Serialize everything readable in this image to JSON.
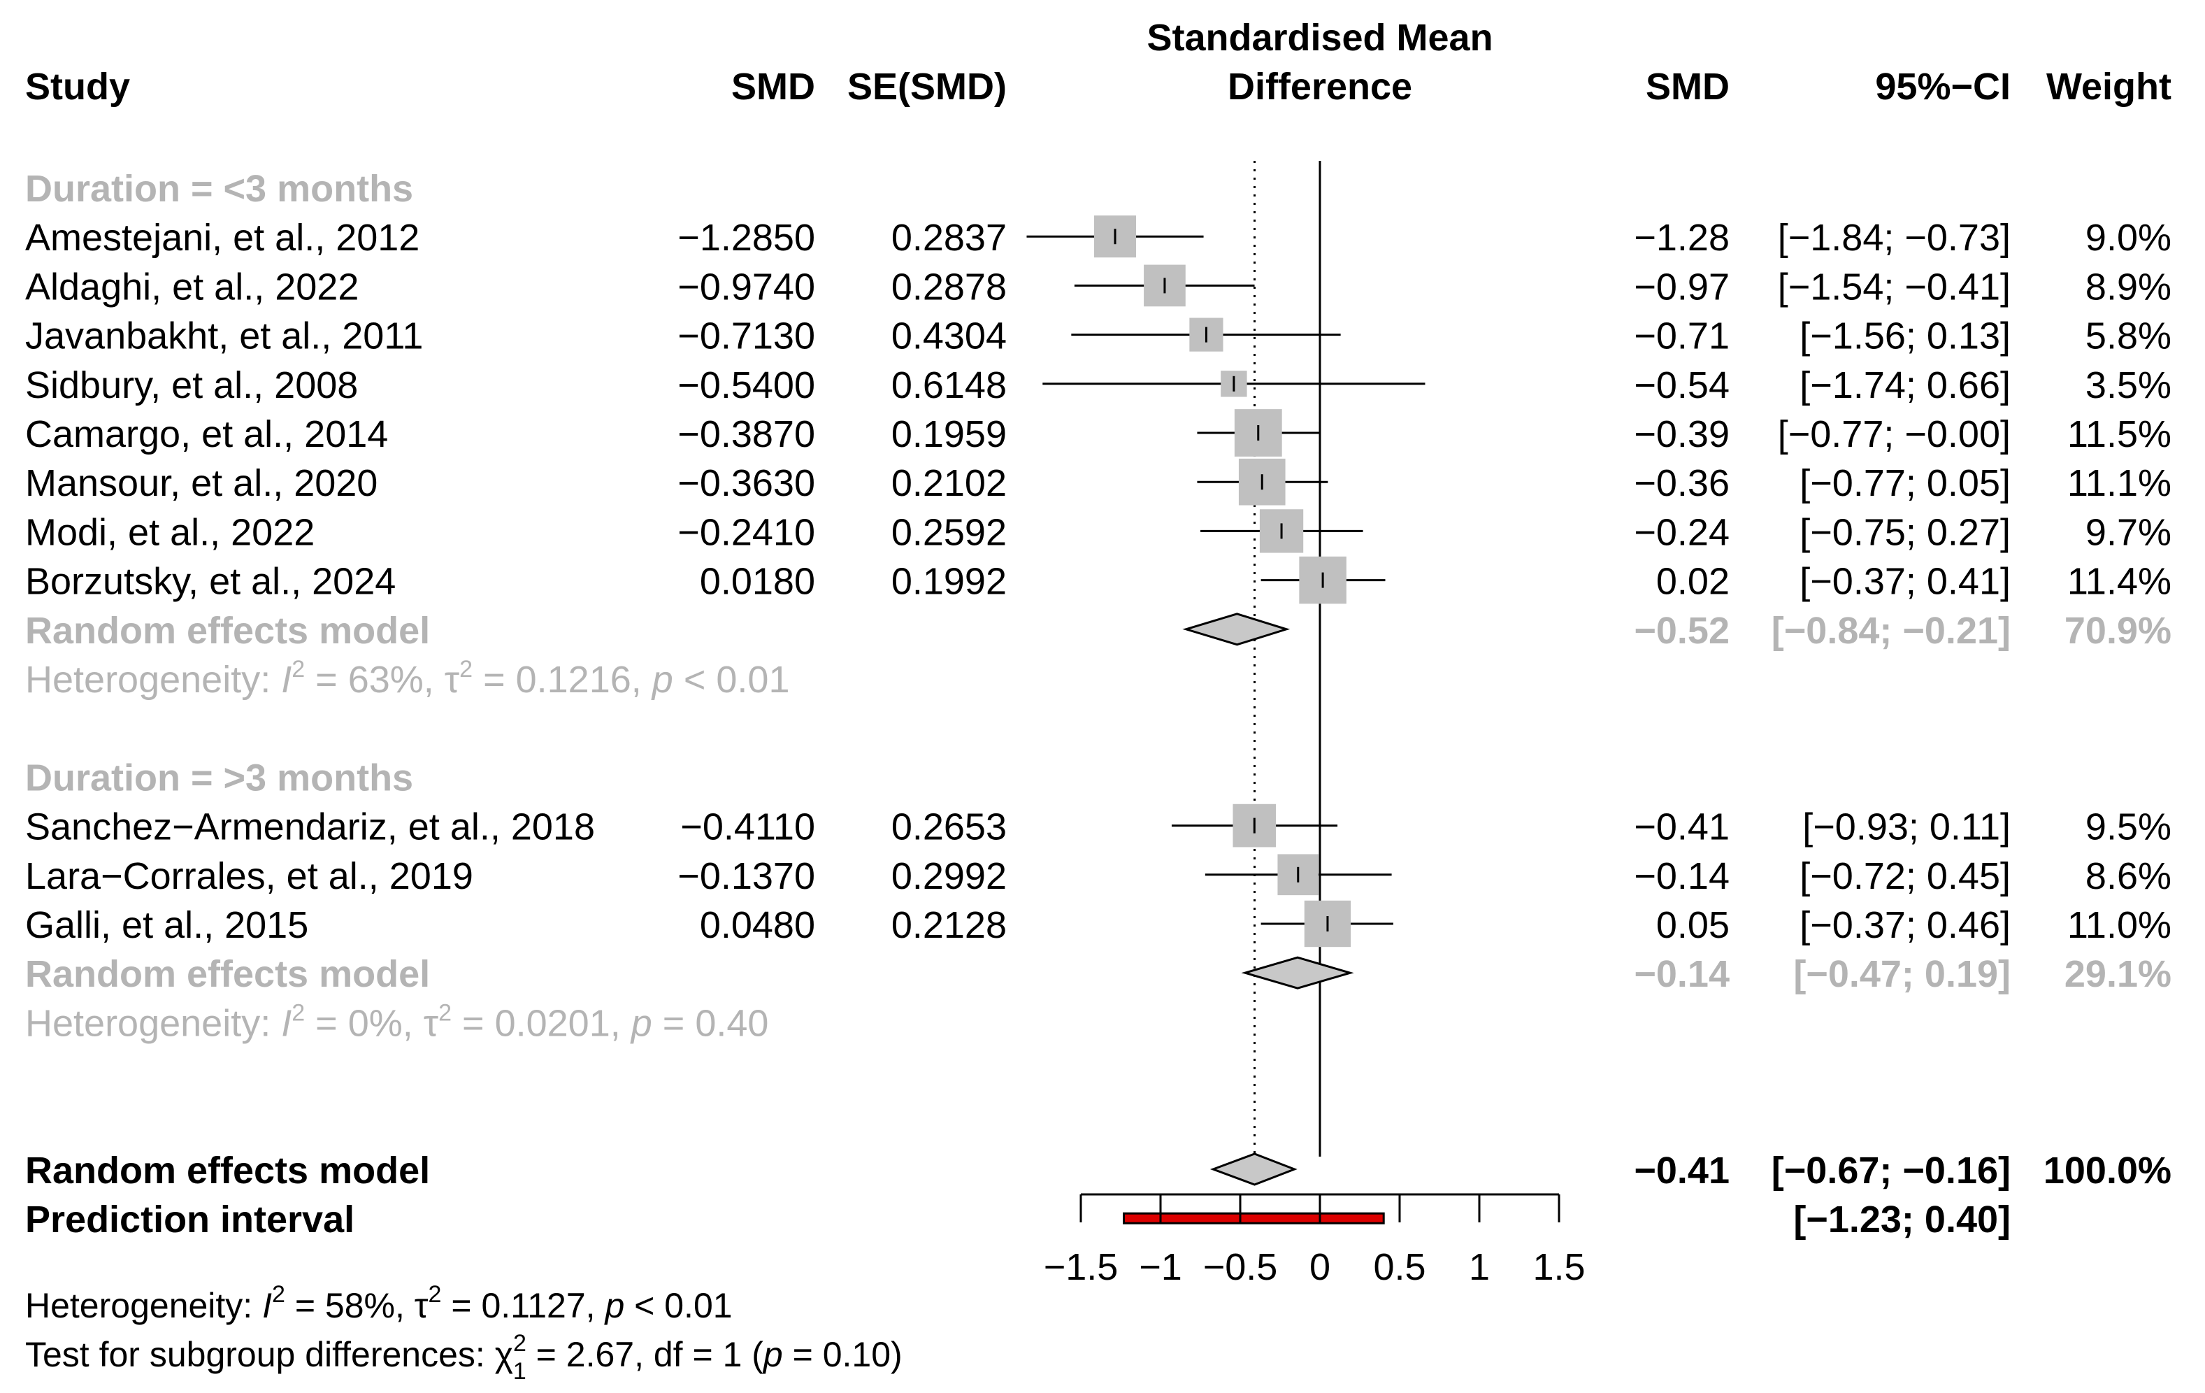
{
  "headers": {
    "study": "Study",
    "smd": "SMD",
    "se": "SE(SMD)",
    "plot_title_1": "Standardised Mean",
    "plot_title_2": "Difference",
    "smd_right": "SMD",
    "ci": "95%−CI",
    "weight": "Weight"
  },
  "colors": {
    "grey_text": "#b4b4b4",
    "box_fill": "#c0c0c0",
    "diamond_fill": "#c8c8c8",
    "prediction": "#dd0000"
  },
  "chart_data": {
    "type": "forest",
    "xlim": [
      -1.5,
      1.5
    ],
    "x_ticks": [
      -1.5,
      -1,
      -0.5,
      0,
      0.5,
      1,
      1.5
    ],
    "x_tick_labels": [
      "−1.5",
      "−1",
      "−0.5",
      "0",
      "0.5",
      "1",
      "1.5"
    ],
    "overall_effect": -0.41,
    "rows": [
      {
        "type": "subgroup",
        "label": "Duration = <3 months"
      },
      {
        "type": "study",
        "label": "Amestejani, et al., 2012",
        "smd": "−1.2850",
        "se": "0.2837",
        "smd_r": "−1.28",
        "ci": "[−1.84; −0.73]",
        "weight": "9.0%",
        "est": -1.285,
        "lo": -1.84,
        "hi": -0.73,
        "w": 9.0
      },
      {
        "type": "study",
        "label": "Aldaghi, et al., 2022",
        "smd": "−0.9740",
        "se": "0.2878",
        "smd_r": "−0.97",
        "ci": "[−1.54; −0.41]",
        "weight": "8.9%",
        "est": -0.974,
        "lo": -1.54,
        "hi": -0.41,
        "w": 8.9
      },
      {
        "type": "study",
        "label": "Javanbakht, et al., 2011",
        "smd": "−0.7130",
        "se": "0.4304",
        "smd_r": "−0.71",
        "ci": "[−1.56;  0.13]",
        "weight": "5.8%",
        "est": -0.713,
        "lo": -1.56,
        "hi": 0.13,
        "w": 5.8
      },
      {
        "type": "study",
        "label": "Sidbury, et al., 2008",
        "smd": "−0.5400",
        "se": "0.6148",
        "smd_r": "−0.54",
        "ci": "[−1.74;  0.66]",
        "weight": "3.5%",
        "est": -0.54,
        "lo": -1.74,
        "hi": 0.66,
        "w": 3.5
      },
      {
        "type": "study",
        "label": "Camargo, et al., 2014",
        "smd": "−0.3870",
        "se": "0.1959",
        "smd_r": "−0.39",
        "ci": "[−0.77; −0.00]",
        "weight": "11.5%",
        "est": -0.387,
        "lo": -0.77,
        "hi": -0.0,
        "w": 11.5
      },
      {
        "type": "study",
        "label": "Mansour, et al., 2020",
        "smd": "−0.3630",
        "se": "0.2102",
        "smd_r": "−0.36",
        "ci": "[−0.77;  0.05]",
        "weight": "11.1%",
        "est": -0.363,
        "lo": -0.77,
        "hi": 0.05,
        "w": 11.1
      },
      {
        "type": "study",
        "label": "Modi, et al., 2022",
        "smd": "−0.2410",
        "se": "0.2592",
        "smd_r": "−0.24",
        "ci": "[−0.75;  0.27]",
        "weight": "9.7%",
        "est": -0.241,
        "lo": -0.75,
        "hi": 0.27,
        "w": 9.7
      },
      {
        "type": "study",
        "label": "Borzutsky, et al., 2024",
        "smd": "0.0180",
        "se": "0.1992",
        "smd_r": "0.02",
        "ci": "[−0.37;  0.41]",
        "weight": "11.4%",
        "est": 0.018,
        "lo": -0.37,
        "hi": 0.41,
        "w": 11.4
      },
      {
        "type": "pooled",
        "grey": true,
        "label": "Random effects model",
        "smd_r": "−0.52",
        "ci": "[−0.84; −0.21]",
        "weight": "70.9%",
        "est": -0.52,
        "lo": -0.84,
        "hi": -0.21
      },
      {
        "type": "het",
        "label": "Heterogeneity: ",
        "i2": "63%",
        "tau2": "0.1216",
        "p": "< 0.01"
      },
      {
        "type": "blank"
      },
      {
        "type": "subgroup",
        "label": "Duration = >3 months"
      },
      {
        "type": "study",
        "label": "Sanchez−Armendariz, et al., 2018",
        "smd": "−0.4110",
        "se": "0.2653",
        "smd_r": "−0.41",
        "ci": "[−0.93;  0.11]",
        "weight": "9.5%",
        "est": -0.411,
        "lo": -0.93,
        "hi": 0.11,
        "w": 9.5
      },
      {
        "type": "study",
        "label": "Lara−Corrales, et al., 2019",
        "smd": "−0.1370",
        "se": "0.2992",
        "smd_r": "−0.14",
        "ci": "[−0.72;  0.45]",
        "weight": "8.6%",
        "est": -0.137,
        "lo": -0.72,
        "hi": 0.45,
        "w": 8.6
      },
      {
        "type": "study",
        "label": "Galli, et al., 2015",
        "smd": "0.0480",
        "se": "0.2128",
        "smd_r": "0.05",
        "ci": "[−0.37;  0.46]",
        "weight": "11.0%",
        "est": 0.048,
        "lo": -0.37,
        "hi": 0.46,
        "w": 11.0
      },
      {
        "type": "pooled",
        "grey": true,
        "label": "Random effects model",
        "smd_r": "−0.14",
        "ci": "[−0.47;  0.19]",
        "weight": "29.1%",
        "est": -0.14,
        "lo": -0.47,
        "hi": 0.19
      },
      {
        "type": "het",
        "label": "Heterogeneity: ",
        "i2": "0%",
        "tau2": "0.0201",
        "p": "= 0.40"
      },
      {
        "type": "blank"
      },
      {
        "type": "blank"
      },
      {
        "type": "pooled",
        "grey": false,
        "label": "Random effects model",
        "smd_r": "−0.41",
        "ci": "[−0.67; −0.16]",
        "weight": "100.0%",
        "est": -0.41,
        "lo": -0.67,
        "hi": -0.16
      },
      {
        "type": "prediction",
        "label": "Prediction interval",
        "ci": "[−1.23;  0.40]",
        "lo": -1.23,
        "hi": 0.4
      }
    ],
    "footer": {
      "heterogeneity": {
        "label": "Heterogeneity: ",
        "i2": "58%",
        "tau2": "0.1127",
        "p": "< 0.01"
      },
      "subgroup_test": {
        "label": "Test for subgroup differences: ",
        "chi2": "2.67",
        "df": "1",
        "p": "0.10"
      }
    }
  }
}
